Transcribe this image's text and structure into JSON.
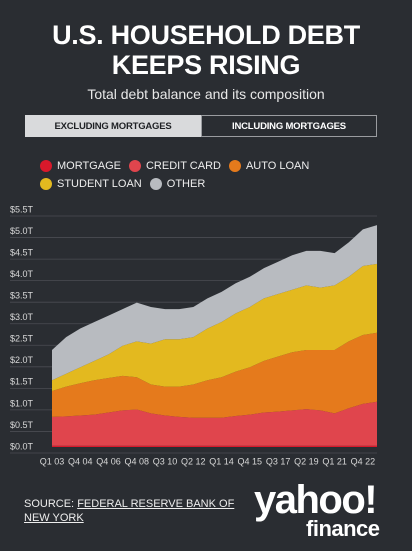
{
  "chart_data": {
    "type": "stacked_area",
    "title": "U.S. HOUSEHOLD DEBT KEEPS RISING",
    "subtitle": "Total debt balance and its composition",
    "categories": [
      "Q1 03",
      null,
      "Q4 04",
      null,
      "Q4 06",
      null,
      "Q4 08",
      null,
      "Q3 10",
      null,
      "Q2 12",
      null,
      "Q1 14",
      null,
      "Q4 15",
      null,
      "Q3 17",
      null,
      "Q2 19",
      null,
      "Q1 21",
      null,
      "Q4 22",
      null
    ],
    "series": [
      {
        "name": "MORTGAGE",
        "color": "#d9192b",
        "values": [
          0.03,
          0.03,
          0.03,
          0.03,
          0.03,
          0.03,
          0.03,
          0.03,
          0.03,
          0.03,
          0.03,
          0.03,
          0.03,
          0.03,
          0.03,
          0.03,
          0.03,
          0.03,
          0.03,
          0.03,
          0.03,
          0.03,
          0.03,
          0.03
        ]
      },
      {
        "name": "CREDIT CARD",
        "color": "#e0454d",
        "values": [
          0.67,
          0.68,
          0.7,
          0.72,
          0.77,
          0.82,
          0.84,
          0.75,
          0.7,
          0.67,
          0.65,
          0.65,
          0.65,
          0.69,
          0.72,
          0.77,
          0.79,
          0.82,
          0.85,
          0.82,
          0.75,
          0.87,
          0.97,
          1.02
        ]
      },
      {
        "name": "AUTO LOAN",
        "color": "#e57a1c",
        "values": [
          0.6,
          0.69,
          0.75,
          0.8,
          0.8,
          0.8,
          0.75,
          0.67,
          0.67,
          0.7,
          0.77,
          0.87,
          0.94,
          1.03,
          1.1,
          1.2,
          1.28,
          1.35,
          1.37,
          1.4,
          1.47,
          1.55,
          1.6,
          1.6
        ]
      },
      {
        "name": "STUDENT LOAN",
        "color": "#e3b91f",
        "values": [
          0.25,
          0.3,
          0.37,
          0.45,
          0.55,
          0.7,
          0.83,
          0.95,
          1.1,
          1.1,
          1.1,
          1.2,
          1.28,
          1.35,
          1.4,
          1.45,
          1.45,
          1.45,
          1.5,
          1.45,
          1.5,
          1.5,
          1.6,
          1.6
        ]
      },
      {
        "name": "OTHER",
        "color": "#b8bbc0",
        "values": [
          0.7,
          0.85,
          0.9,
          0.9,
          0.9,
          0.85,
          0.9,
          0.85,
          0.7,
          0.7,
          0.7,
          0.7,
          0.7,
          0.7,
          0.7,
          0.7,
          0.75,
          0.8,
          0.8,
          0.85,
          0.75,
          0.8,
          0.85,
          0.9
        ]
      }
    ],
    "ylim": [
      0,
      5.5
    ],
    "yticks": [
      {
        "value": 0,
        "label": "$0.0T"
      },
      {
        "value": 0.5,
        "label": "$0.5T"
      },
      {
        "value": 1,
        "label": "$1.0T"
      },
      {
        "value": 1.5,
        "label": "$1.5T"
      },
      {
        "value": 2,
        "label": "$2.0T"
      },
      {
        "value": 2.5,
        "label": "$2.5T"
      },
      {
        "value": 3,
        "label": "$3.0T"
      },
      {
        "value": 3.5,
        "label": "$3.5T"
      },
      {
        "value": 4,
        "label": "$4.0T"
      },
      {
        "value": 4.5,
        "label": "$4.5T"
      },
      {
        "value": 5,
        "label": "$5.0T"
      },
      {
        "value": 5.5,
        "label": "$5.5T"
      }
    ],
    "grid": true
  },
  "tabs": [
    "EXCLUDING MORTGAGES",
    "INCLUDING MORTGAGES"
  ],
  "source": {
    "prefix": "SOURCE:",
    "link": "FEDERAL RESERVE BANK OF NEW YORK"
  },
  "logo": {
    "brand": "yahoo!",
    "sub": "finance"
  }
}
